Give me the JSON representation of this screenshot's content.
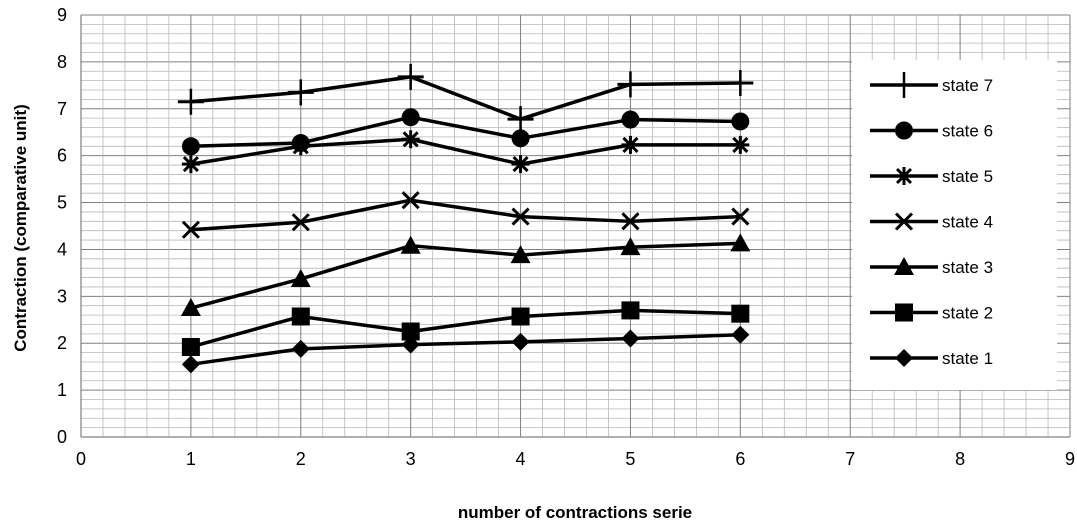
{
  "chart_data": {
    "type": "line",
    "title": "",
    "xlabel": "number of contractions serie",
    "ylabel": "Contraction (comparative unit)",
    "xlim": [
      0,
      9
    ],
    "ylim": [
      0,
      9
    ],
    "xticks": [
      0,
      1,
      2,
      3,
      4,
      5,
      6,
      7,
      8,
      9
    ],
    "yticks": [
      0,
      1,
      2,
      3,
      4,
      5,
      6,
      7,
      8,
      9
    ],
    "grid": true,
    "legend_position": "right",
    "line_color": "#000000",
    "x": [
      1,
      2,
      3,
      4,
      5,
      6
    ],
    "series": [
      {
        "name": "state 7",
        "marker": "plus",
        "values": [
          7.15,
          7.35,
          7.68,
          6.78,
          7.52,
          7.55
        ]
      },
      {
        "name": "state 6",
        "marker": "circle",
        "values": [
          6.2,
          6.27,
          6.82,
          6.37,
          6.77,
          6.73
        ]
      },
      {
        "name": "state 5",
        "marker": "star",
        "values": [
          5.82,
          6.2,
          6.35,
          5.82,
          6.23,
          6.23
        ]
      },
      {
        "name": "state 4",
        "marker": "x",
        "values": [
          4.42,
          4.58,
          5.05,
          4.7,
          4.6,
          4.7
        ]
      },
      {
        "name": "state 3",
        "marker": "triangle",
        "values": [
          2.75,
          3.37,
          4.08,
          3.88,
          4.05,
          4.13
        ]
      },
      {
        "name": "state 2",
        "marker": "square",
        "values": [
          1.92,
          2.57,
          2.25,
          2.57,
          2.7,
          2.63
        ]
      },
      {
        "name": "state 1",
        "marker": "diamond",
        "values": [
          1.55,
          1.88,
          1.97,
          2.03,
          2.1,
          2.18
        ]
      }
    ]
  }
}
